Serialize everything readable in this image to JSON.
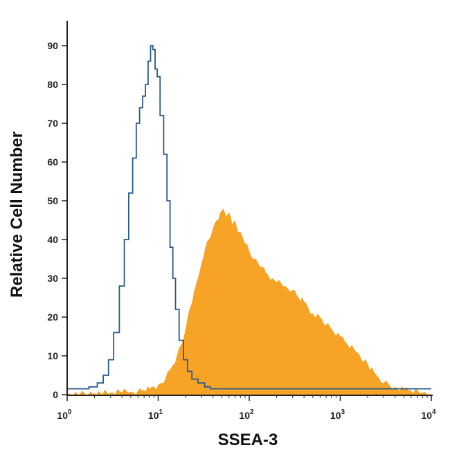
{
  "chart_data": {
    "type": "area",
    "xlabel": "SSEA-3",
    "ylabel": "Relative Cell Number",
    "x_scale": "log",
    "xlim": [
      1,
      10000
    ],
    "ylim": [
      0,
      95
    ],
    "grid": false,
    "x_ticks": [
      {
        "value": 1,
        "base": "10",
        "exp": "0"
      },
      {
        "value": 10,
        "base": "10",
        "exp": "1"
      },
      {
        "value": 100,
        "base": "10",
        "exp": "2"
      },
      {
        "value": 1000,
        "base": "10",
        "exp": "3"
      },
      {
        "value": 10000,
        "base": "10",
        "exp": "4"
      }
    ],
    "y_ticks": [
      0,
      10,
      20,
      30,
      40,
      50,
      60,
      70,
      80,
      90
    ],
    "series": [
      {
        "style": "filled",
        "color": "#f7a325",
        "x": [
          1,
          2,
          3,
          4,
          5,
          6,
          7,
          8,
          9,
          10,
          12,
          14,
          16,
          18,
          20,
          22,
          25,
          28,
          30,
          33,
          36,
          40,
          44,
          48,
          52,
          56,
          60,
          65,
          70,
          75,
          80,
          90,
          100,
          110,
          125,
          140,
          160,
          180,
          200,
          250,
          300,
          350,
          400,
          500,
          600,
          700,
          800,
          1000,
          1200,
          1500,
          2000,
          2500,
          3000,
          4000,
          5000,
          6000,
          8000,
          10000
        ],
        "values": [
          0,
          0.3,
          0.5,
          0.6,
          0.8,
          1,
          1.2,
          1.5,
          2,
          2.5,
          4,
          7,
          10,
          13,
          17,
          22,
          27,
          31,
          34,
          38,
          40,
          43,
          45,
          47,
          48,
          46,
          47,
          44,
          45,
          42,
          42,
          39,
          37,
          35,
          34,
          33,
          31,
          30,
          29,
          28,
          27,
          25,
          24,
          21,
          20,
          18,
          17,
          15,
          13,
          11,
          8,
          5,
          3,
          2,
          1.5,
          1,
          0.5,
          0.3
        ]
      },
      {
        "style": "outline",
        "color": "#2a5a8a",
        "x": [
          1,
          1.5,
          2,
          2.3,
          2.7,
          3,
          3.5,
          4,
          4.5,
          5,
          5.5,
          6,
          6.5,
          7,
          7.5,
          8,
          8.5,
          9,
          9.5,
          10,
          11,
          12,
          13,
          14,
          15,
          16,
          18,
          20,
          22,
          25,
          30,
          35,
          40,
          50,
          100,
          500,
          1000,
          5000,
          10000
        ],
        "values": [
          1.5,
          1.5,
          2,
          3,
          5,
          9,
          16,
          28,
          40,
          52,
          61,
          70,
          74,
          77,
          80,
          86,
          90,
          89,
          84,
          82,
          72,
          62,
          50,
          38,
          30,
          22,
          14,
          9,
          6,
          4,
          3,
          2,
          1.5,
          1.5,
          1.5,
          1.5,
          1.5,
          1.5,
          1.5
        ]
      }
    ]
  }
}
